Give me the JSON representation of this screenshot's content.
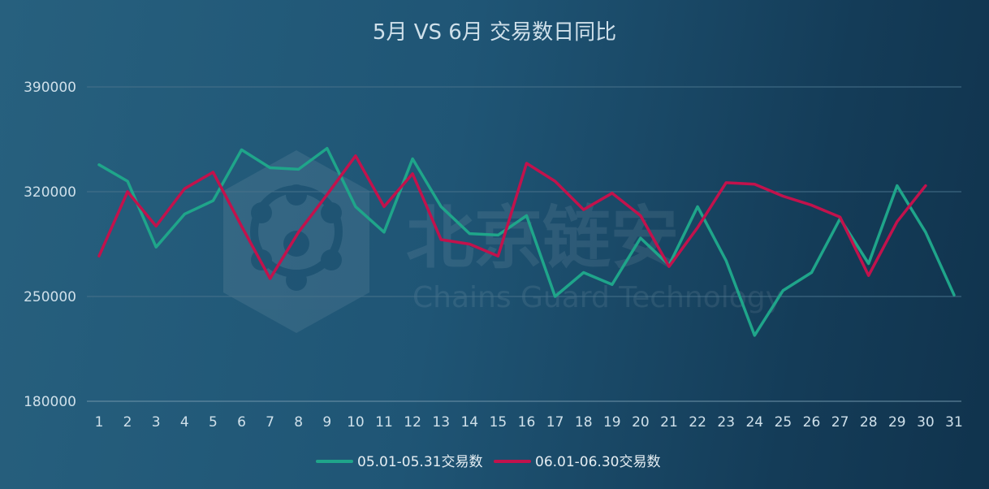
{
  "chart_data": {
    "type": "line",
    "title": "5月 VS 6月 交易数日同比",
    "xlabel": "",
    "ylabel": "",
    "categories": [
      "1",
      "2",
      "3",
      "4",
      "5",
      "6",
      "7",
      "8",
      "9",
      "10",
      "11",
      "12",
      "13",
      "14",
      "15",
      "16",
      "17",
      "18",
      "19",
      "20",
      "21",
      "22",
      "23",
      "24",
      "25",
      "26",
      "27",
      "28",
      "29",
      "30",
      "31"
    ],
    "y_ticks": [
      180000,
      250000,
      320000,
      390000
    ],
    "ylim": [
      180000,
      390000
    ],
    "grid": true,
    "legend_position": "bottom",
    "series": [
      {
        "name": "05.01-05.31交易数",
        "color": "#1fa58a",
        "values": [
          338000,
          327000,
          283000,
          305000,
          314000,
          348000,
          336000,
          335000,
          349000,
          310000,
          293000,
          342000,
          310000,
          292000,
          291000,
          304000,
          250000,
          266000,
          258000,
          289000,
          271000,
          310000,
          274000,
          224000,
          254000,
          266000,
          302000,
          272000,
          324000,
          293000,
          251000
        ]
      },
      {
        "name": "06.01-06.30交易数",
        "color": "#c2124c",
        "values": [
          277000,
          320000,
          297000,
          322000,
          333000,
          297000,
          262000,
          293000,
          318000,
          344000,
          310000,
          332000,
          288000,
          285000,
          277000,
          339000,
          327000,
          308000,
          319000,
          304000,
          270000,
          296000,
          326000,
          325000,
          317000,
          311000,
          303000,
          264000,
          300000,
          324000,
          null
        ]
      }
    ]
  },
  "watermark": {
    "brand_cn": "北京链安",
    "brand_en": "Chains Guard Technology",
    "icon": "shield-network-icon"
  }
}
